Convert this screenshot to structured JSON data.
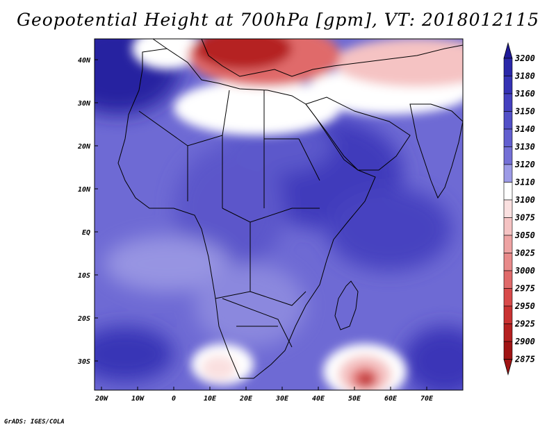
{
  "title": "Geopotential Height at 700hPa [gpm], VT: 2018012115",
  "map": {
    "lat_labels": [
      "40N",
      "30N",
      "20N",
      "10N",
      "EQ",
      "10S",
      "20S",
      "30S"
    ],
    "lon_labels": [
      "20W",
      "10W",
      "0",
      "10E",
      "20E",
      "30E",
      "40E",
      "50E",
      "60E",
      "70E"
    ]
  },
  "colorbar": {
    "levels": [
      "3200",
      "3180",
      "3160",
      "3150",
      "3140",
      "3130",
      "3120",
      "3110",
      "3100",
      "3075",
      "3050",
      "3025",
      "3000",
      "2975",
      "2950",
      "2925",
      "2900",
      "2875"
    ],
    "colors": [
      "#1f1a99",
      "#2a27a8",
      "#3532b4",
      "#4440bf",
      "#5250c7",
      "#625fcf",
      "#7470d6",
      "#9d9be6",
      "#ffffff",
      "#fae0e0",
      "#f5c3c3",
      "#eea3a3",
      "#e88a8a",
      "#e06a6a",
      "#d84a4a",
      "#c93232",
      "#b52020",
      "#a01414"
    ]
  },
  "credit": "GrADS: IGES/COLA"
}
